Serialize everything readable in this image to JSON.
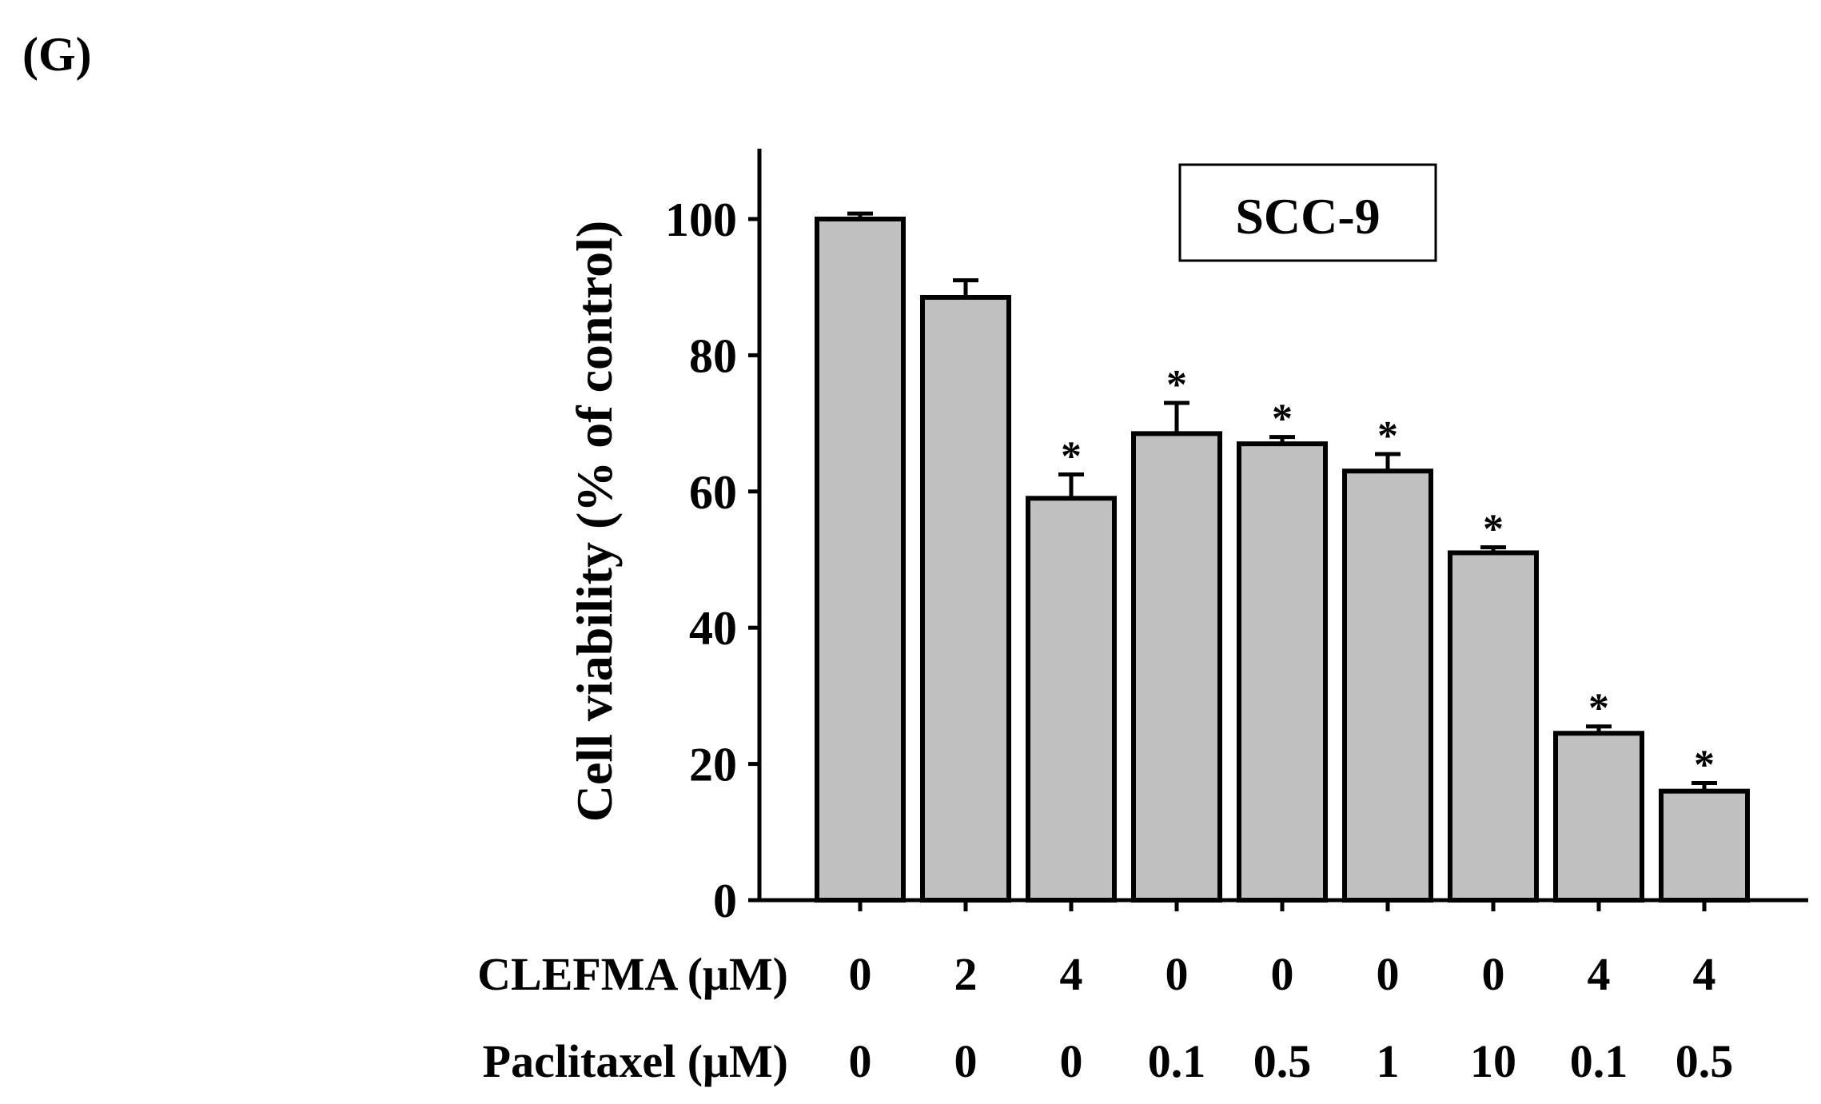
{
  "panel_label": "(G)",
  "chart_data": {
    "type": "bar",
    "title": "SCC-9",
    "xlabel": "",
    "ylabel": "Cell viability (% of control)",
    "ylim": [
      0,
      110
    ],
    "yticks": [
      0,
      20,
      40,
      60,
      80,
      100
    ],
    "grid": false,
    "bar_color": "#c0c0c0",
    "edge_color": "#000000",
    "values": [
      100,
      88.5,
      59,
      68.5,
      67,
      63,
      51,
      24.5,
      16
    ],
    "errors": [
      0.8,
      2.5,
      3.5,
      4.5,
      1.0,
      2.5,
      0.8,
      1.0,
      1.2
    ],
    "significance": [
      "",
      "",
      "*",
      "*",
      "*",
      "*",
      "*",
      "*",
      "*"
    ],
    "condition_rows": [
      {
        "label": "CLEFMA (μM)",
        "values": [
          "0",
          "2",
          "4",
          "0",
          "0",
          "0",
          "0",
          "4",
          "4"
        ]
      },
      {
        "label": "Paclitaxel (μM)",
        "values": [
          "0",
          "0",
          "0",
          "0.1",
          "0.5",
          "1",
          "10",
          "0.1",
          "0.5"
        ]
      }
    ]
  }
}
